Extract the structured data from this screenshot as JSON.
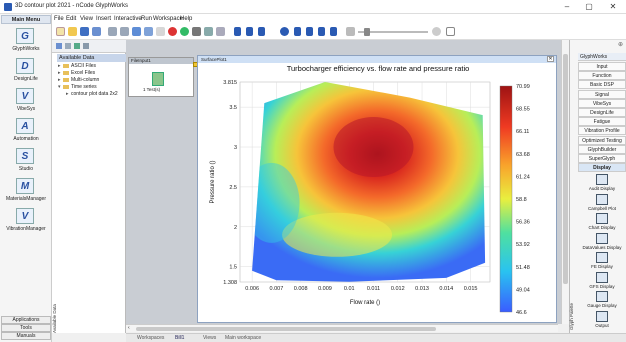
{
  "window": {
    "title": "3D contour plot 2021 - nCode GlyphWorks",
    "min_glyph": "–",
    "max_glyph": "▢",
    "close_glyph": "✕"
  },
  "menu": [
    "File",
    "Edit",
    "View",
    "Insert",
    "Interactive",
    "Run",
    "Workspace",
    "Help"
  ],
  "left_rail": {
    "header": "Main Menu",
    "items": [
      {
        "label": "GlyphWorks",
        "icon": "G"
      },
      {
        "label": "DesignLife",
        "icon": "D"
      },
      {
        "label": "VibeSys",
        "icon": "V"
      },
      {
        "label": "Automation",
        "icon": "A"
      },
      {
        "label": "Studio",
        "icon": "S"
      },
      {
        "label": "MaterialsManager",
        "icon": "M"
      },
      {
        "label": "VibrationManager",
        "icon": "V"
      }
    ],
    "bottom": [
      "Applications",
      "Tools",
      "Manuals"
    ]
  },
  "data_panel": {
    "header": "Available Data",
    "vertical_tab": "Available Data",
    "tree": [
      {
        "label": "ASCII Files",
        "level": 1,
        "arrow": "▸"
      },
      {
        "label": "Excel Files",
        "level": 1,
        "arrow": "▸"
      },
      {
        "label": "Multi-column",
        "level": 1,
        "arrow": "▸"
      },
      {
        "label": "Time series",
        "level": 1,
        "arrow": "▾"
      },
      {
        "label": "contour plot data 2x2",
        "level": 2,
        "arrow": "▸"
      }
    ]
  },
  "file_input": {
    "title": "FileInput1",
    "label": "1 Test(s)"
  },
  "surface_window": {
    "title": "SurfacePlot1",
    "close": "✕"
  },
  "chart_data": {
    "type": "heatmap",
    "title": "Turbocharger efficiency vs. flow rate and pressure ratio",
    "xlabel": "Flow rate ()",
    "ylabel": "Pressure ratio ()",
    "xlim": [
      0.0055,
      0.0158
    ],
    "ylim": [
      1.308,
      3.815
    ],
    "x_ticks": [
      "0.006",
      "0.007",
      "0.008",
      "0.009",
      "0.01",
      "0.011",
      "0.012",
      "0.013",
      "0.014",
      "0.015"
    ],
    "y_ticks": [
      "3.815",
      "3.5",
      "3",
      "2.5",
      "2",
      "1.5",
      "1.308"
    ],
    "colorbar_labels": [
      "70.99",
      "68.55",
      "66.11",
      "63.68",
      "61.24",
      "58.8",
      "56.36",
      "53.92",
      "51.48",
      "49.04",
      "46.6"
    ],
    "colorbar_range": [
      46.6,
      70.99
    ],
    "grid": true,
    "boundary": [
      [
        0.006,
        1.45
      ],
      [
        0.0065,
        3.55
      ],
      [
        0.009,
        3.815
      ],
      [
        0.0125,
        3.62
      ],
      [
        0.0155,
        3.4
      ],
      [
        0.0156,
        1.55
      ],
      [
        0.014,
        1.36
      ],
      [
        0.01,
        1.31
      ],
      [
        0.007,
        1.33
      ]
    ],
    "peak": {
      "x": 0.011,
      "y": 3.0,
      "value": 70.99
    }
  },
  "bottom_tabs": [
    "Workspaces",
    "Bill1",
    "Views",
    "Main workspace"
  ],
  "right_panel": {
    "header": "GlyphWorks",
    "vertical_tab": "Glyph Palette",
    "buttons": [
      "Input",
      "Function",
      "Basic DSP",
      "Signal",
      "VibeSys",
      "DesignLife",
      "Fatigue",
      "Vibration Profile De...",
      "Optimized Testing",
      "GlyphBuilder",
      "SuperGlyph",
      "Display"
    ],
    "selected": "Display",
    "displays": [
      "Audit Display",
      "Campbell Plot",
      "Chart Display",
      "DataValues Display",
      "FE Display",
      "GFS Display",
      "Gauge Display",
      "Output"
    ]
  }
}
